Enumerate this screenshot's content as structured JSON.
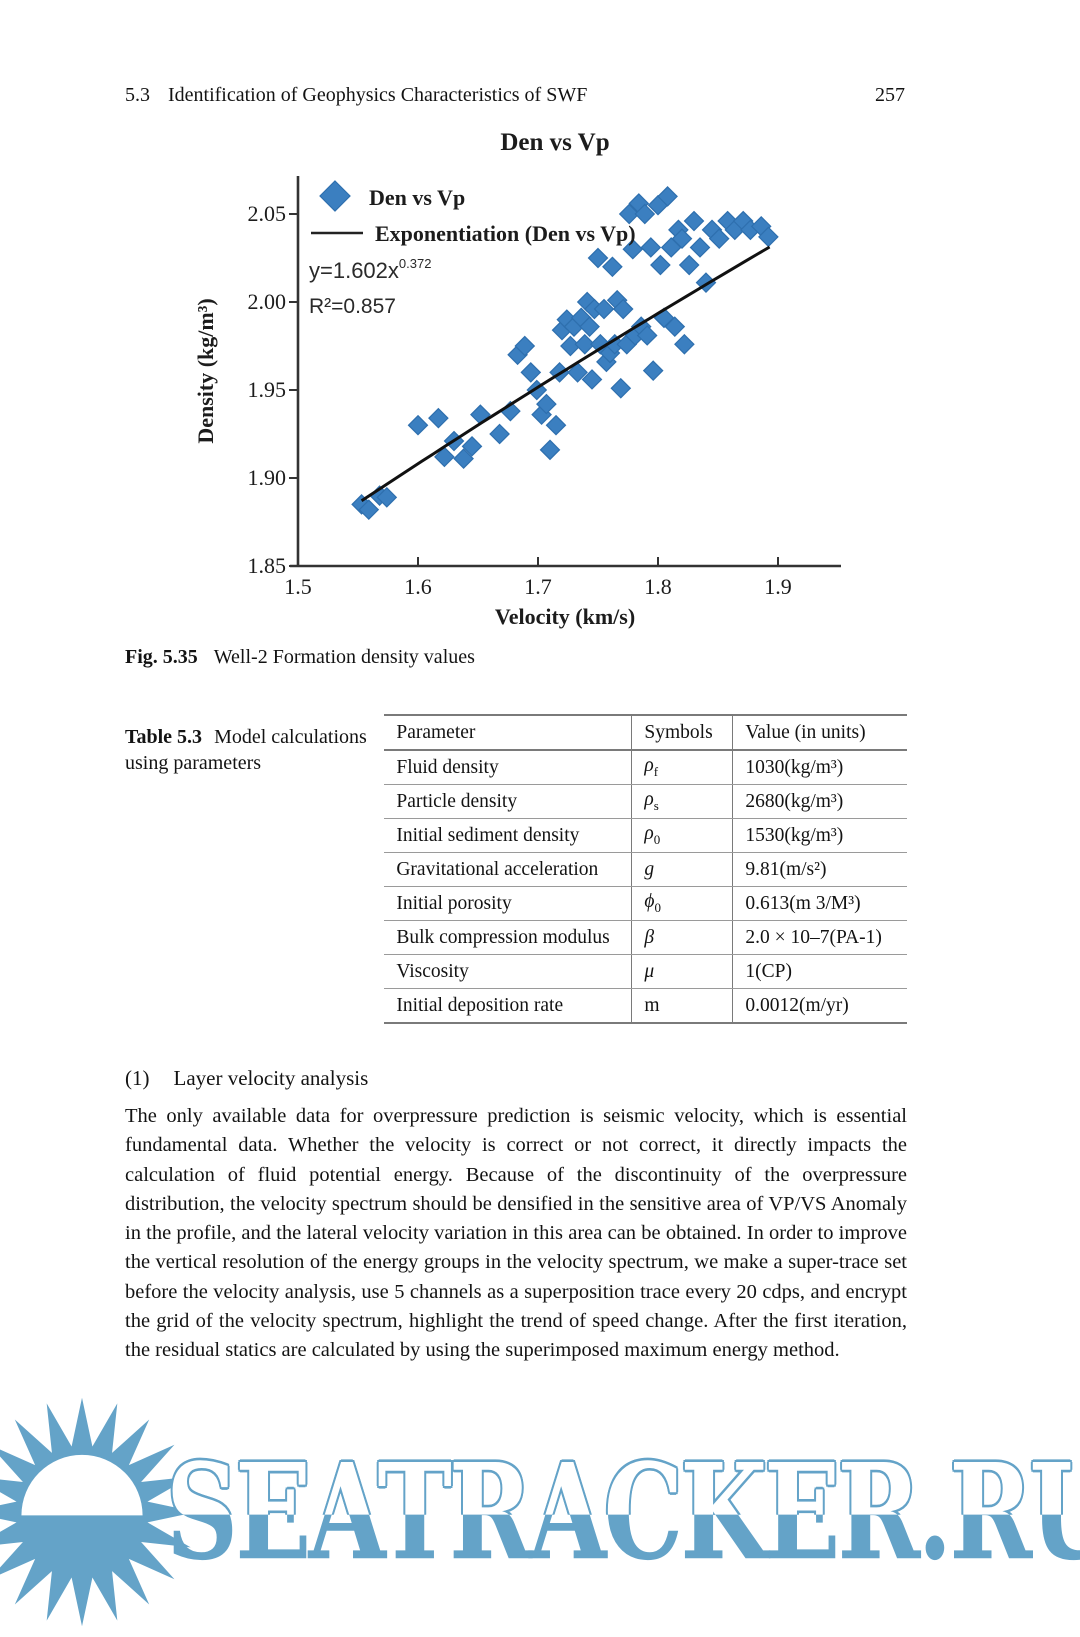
{
  "header": {
    "section_number": "5.3",
    "section_title": "Identification of Geophysics Characteristics of SWF",
    "page_number": "257"
  },
  "figure": {
    "caption_label": "Fig. 5.35",
    "caption_text": "Well-2 Formation density values"
  },
  "chart_data": {
    "type": "scatter",
    "title": "Den vs Vp",
    "xlabel": "Velocity (km/s)",
    "ylabel": "Density (kg/m³)",
    "xlim": [
      1.5,
      1.935
    ],
    "ylim": [
      1.85,
      2.075
    ],
    "xticks": [
      "1.5",
      "1.6",
      "1.7",
      "1.8",
      "1.9"
    ],
    "yticks": [
      "1.85",
      "1.90",
      "1.95",
      "2.00",
      "2.05"
    ],
    "grid": false,
    "legend_position": "top-left-inside",
    "legend": [
      {
        "label": "Den vs Vp",
        "marker": "diamond"
      },
      {
        "label": "Exponentiation (Den vs Vp)",
        "marker": "line"
      }
    ],
    "equation_base": "y=1.602x",
    "equation_exponent": "0.372",
    "r_squared": "R²=0.857",
    "trendline": {
      "type": "power",
      "a": 1.602,
      "b": 0.372,
      "x_start": 1.553,
      "x_end": 1.897,
      "color": "#111111"
    },
    "marker_color": "#3b7fc0",
    "marker_edge": "#2e6fae",
    "series": [
      {
        "name": "Den vs Vp",
        "points": [
          [
            1.553,
            1.885
          ],
          [
            1.559,
            1.882
          ],
          [
            1.568,
            1.89
          ],
          [
            1.574,
            1.889
          ],
          [
            1.6,
            1.93
          ],
          [
            1.617,
            1.934
          ],
          [
            1.622,
            1.912
          ],
          [
            1.63,
            1.921
          ],
          [
            1.638,
            1.911
          ],
          [
            1.645,
            1.918
          ],
          [
            1.652,
            1.936
          ],
          [
            1.668,
            1.925
          ],
          [
            1.677,
            1.938
          ],
          [
            1.683,
            1.97
          ],
          [
            1.689,
            1.975
          ],
          [
            1.694,
            1.96
          ],
          [
            1.699,
            1.95
          ],
          [
            1.703,
            1.936
          ],
          [
            1.707,
            1.942
          ],
          [
            1.71,
            1.916
          ],
          [
            1.715,
            1.93
          ],
          [
            1.718,
            1.96
          ],
          [
            1.72,
            1.984
          ],
          [
            1.724,
            1.99
          ],
          [
            1.727,
            1.975
          ],
          [
            1.73,
            1.986
          ],
          [
            1.733,
            1.96
          ],
          [
            1.736,
            1.991
          ],
          [
            1.739,
            1.976
          ],
          [
            1.741,
            2.0
          ],
          [
            1.743,
            1.986
          ],
          [
            1.745,
            1.956
          ],
          [
            1.747,
            1.996
          ],
          [
            1.75,
            2.025
          ],
          [
            1.752,
            1.976
          ],
          [
            1.755,
            1.996
          ],
          [
            1.757,
            1.966
          ],
          [
            1.76,
            1.971
          ],
          [
            1.762,
            2.02
          ],
          [
            1.764,
            1.976
          ],
          [
            1.766,
            2.001
          ],
          [
            1.769,
            1.951
          ],
          [
            1.771,
            1.996
          ],
          [
            1.774,
            1.976
          ],
          [
            1.776,
            2.05
          ],
          [
            1.779,
            2.03
          ],
          [
            1.781,
            1.981
          ],
          [
            1.784,
            2.056
          ],
          [
            1.786,
            1.986
          ],
          [
            1.789,
            2.05
          ],
          [
            1.791,
            1.981
          ],
          [
            1.794,
            2.031
          ],
          [
            1.796,
            1.961
          ],
          [
            1.8,
            2.055
          ],
          [
            1.802,
            2.021
          ],
          [
            1.805,
            1.991
          ],
          [
            1.808,
            2.06
          ],
          [
            1.811,
            2.031
          ],
          [
            1.814,
            1.986
          ],
          [
            1.817,
            2.041
          ],
          [
            1.82,
            2.036
          ],
          [
            1.822,
            1.976
          ],
          [
            1.826,
            2.021
          ],
          [
            1.83,
            2.046
          ],
          [
            1.835,
            2.031
          ],
          [
            1.84,
            2.011
          ],
          [
            1.845,
            2.041
          ],
          [
            1.851,
            2.036
          ],
          [
            1.858,
            2.046
          ],
          [
            1.864,
            2.041
          ],
          [
            1.871,
            2.046
          ],
          [
            1.877,
            2.041
          ],
          [
            1.886,
            2.043
          ],
          [
            1.892,
            2.037
          ]
        ]
      }
    ]
  },
  "table": {
    "caption_label": "Table 5.3",
    "caption_text": "Model calculations using parameters",
    "headers": [
      "Parameter",
      "Symbols",
      "Value (in units)"
    ],
    "rows": [
      {
        "parameter": "Fluid density",
        "symbol": "ρ",
        "symbol_sub": "f",
        "italic": true,
        "value": "1030(kg/m³)"
      },
      {
        "parameter": "Particle density",
        "symbol": "ρ",
        "symbol_sub": "s",
        "italic": true,
        "value": "2680(kg/m³)"
      },
      {
        "parameter": "Initial sediment density",
        "symbol": "ρ",
        "symbol_sub": "0",
        "italic": true,
        "value": "1530(kg/m³)"
      },
      {
        "parameter": "Gravitational acceleration",
        "symbol": "g",
        "symbol_sub": "",
        "italic": true,
        "value": "9.81(m/s²)"
      },
      {
        "parameter": "Initial porosity",
        "symbol": "ϕ",
        "symbol_sub": "0",
        "italic": true,
        "value": "0.613(m 3/M³)"
      },
      {
        "parameter": "Bulk compression modulus",
        "symbol": "β",
        "symbol_sub": "",
        "italic": true,
        "value": "2.0 × 10–7(PA-1)"
      },
      {
        "parameter": "Viscosity",
        "symbol": "μ",
        "symbol_sub": "",
        "italic": true,
        "value": "1(CP)"
      },
      {
        "parameter": "Initial deposition rate",
        "symbol": "m",
        "symbol_sub": "",
        "italic": false,
        "value": "0.0012(m/yr)"
      }
    ]
  },
  "section": {
    "heading_number": "(1)",
    "heading_text": "Layer velocity analysis",
    "paragraph": "The only available data for overpressure prediction is seismic velocity, which is essential fundamental data. Whether the velocity is correct or not correct, it directly impacts the calculation of fluid potential energy. Because of the discontinuity of the overpressure distribution, the velocity spectrum should be densified in the sensitive area of VP/VS Anomaly in the profile, and the lateral velocity variation in this area can be obtained. In order to improve the vertical resolution of the energy groups in the velocity spectrum, we make a super-trace set before the velocity analysis, use 5 channels as a superposition trace every 20 cdps, and encrypt the grid of the velocity spectrum, highlight the trend of speed change. After the first iteration, the residual statics are calculated by using the superimposed maximum energy method."
  },
  "watermark": {
    "text": "SEATRACKER.RU",
    "color": "#64a3c8"
  }
}
